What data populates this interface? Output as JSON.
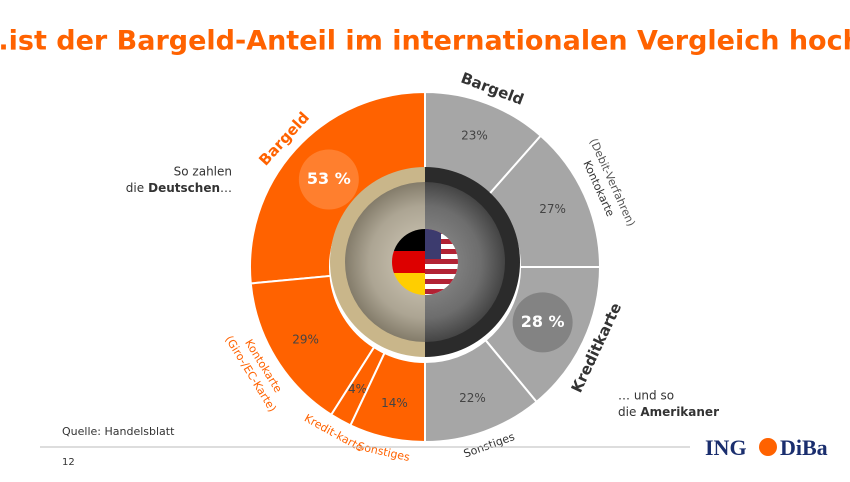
{
  "title": "...ist der Bargeld-Anteil im internationalen Vergleich hoch.",
  "source": "Quelle: Handelsblatt",
  "page_number": "12",
  "logo": {
    "left": "ING",
    "right": "DiBa"
  },
  "chart_data": [
    {
      "type": "half-donut",
      "direction": "left",
      "color": "#ff6200",
      "highlight": 0,
      "caption": {
        "line1": "So zahlen",
        "line2": "die",
        "bold": "Deutschen",
        "end": "…"
      },
      "categories": [
        "Bargeld",
        "Kontokarte",
        "Kredit-karte",
        "Sonstiges"
      ],
      "category_notes": [
        null,
        "(Giro-/EC-Karte)",
        null,
        null
      ],
      "values": [
        53,
        29,
        4,
        14
      ],
      "value_labels": [
        "53 %",
        "29%",
        "4%",
        "14%"
      ]
    },
    {
      "type": "half-donut",
      "direction": "right",
      "color": "#a6a6a6",
      "highlight": 2,
      "caption": {
        "line1": "… und so",
        "line2": "die",
        "bold": "Amerikaner",
        "end": ""
      },
      "categories": [
        "Bargeld",
        "Kontokarte",
        "Kreditkarte",
        "Sonstiges"
      ],
      "category_notes": [
        null,
        "(Debit-Verfahren)",
        null,
        null
      ],
      "values": [
        23,
        27,
        28,
        22
      ],
      "value_labels": [
        "23%",
        "27%",
        "28 %",
        "22%"
      ]
    }
  ]
}
